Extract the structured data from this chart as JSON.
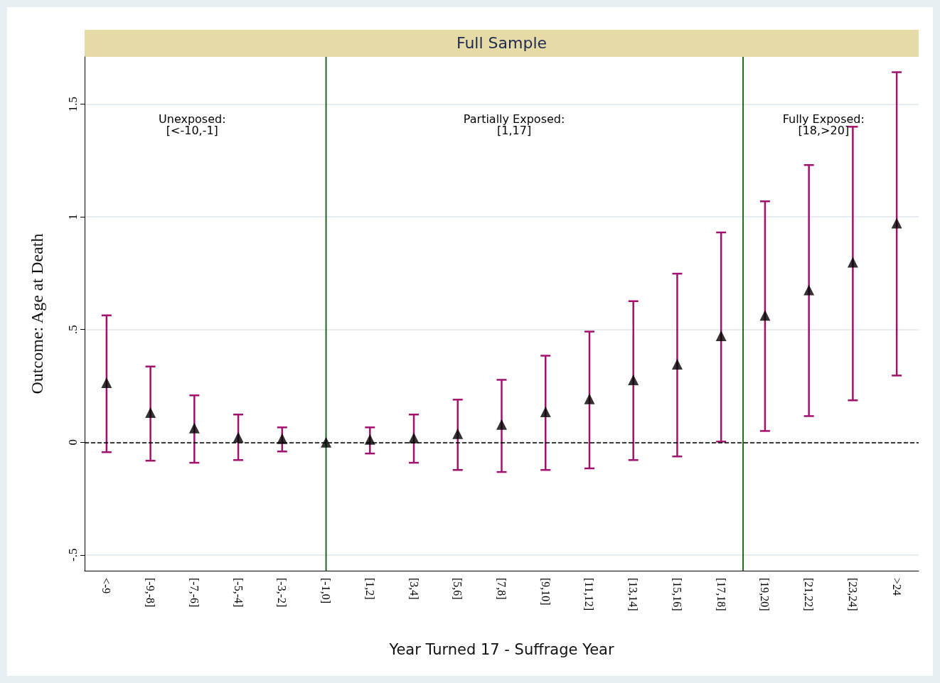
{
  "chart_data": {
    "type": "scatter",
    "title": "Full Sample",
    "xlabel": "Year Turned 17 - Suffrage Year",
    "ylabel": "Outcome: Age at Death",
    "categories": [
      "<-9",
      "[-9,-8]",
      "[-7,-6]",
      "[-5,-4]",
      "[-3,-2]",
      "[-1,0]",
      "[1,2]",
      "[3,4]",
      "[5,6]",
      "[7,8]",
      "[9,10]",
      "[11,12]",
      "[13,14]",
      "[15,16]",
      "[17,18]",
      "[19,20]",
      "[21,22]",
      "[23,24]",
      ">24"
    ],
    "series": [
      {
        "color": "#000000",
        "values": [
          0.264,
          0.132,
          0.063,
          0.022,
          0.016,
          0,
          0.013,
          0.019,
          0.038,
          0.079,
          0.135,
          0.192,
          0.277,
          0.346,
          0.472,
          0.563,
          0.676,
          0.799,
          0.972
        ],
        "errors": [
          [
            -0.044,
            0.563
          ],
          [
            -0.082,
            0.336
          ],
          [
            -0.091,
            0.208
          ],
          [
            -0.079,
            0.123
          ],
          [
            -0.041,
            0.066
          ],
          null,
          [
            -0.05,
            0.066
          ],
          [
            -0.091,
            0.123
          ],
          [
            -0.123,
            0.189
          ],
          [
            -0.132,
            0.277
          ],
          [
            -0.123,
            0.384
          ],
          [
            -0.116,
            0.491
          ],
          [
            -0.079,
            0.626
          ],
          [
            -0.063,
            0.748
          ],
          [
            0.003,
            0.931
          ],
          [
            0.05,
            1.069
          ],
          [
            0.116,
            1.23
          ],
          [
            0.186,
            1.4
          ],
          [
            0.296,
            1.642
          ]
        ]
      }
    ],
    "ylim": [
      -0.57,
      1.71
    ],
    "yticks": [
      {
        "value": -0.5,
        "label": "-.5"
      },
      0,
      {
        "value": 0.5,
        "label": ".5"
      },
      1,
      1.5
    ],
    "grid": "y",
    "marker": "triangle",
    "ref_lines": [
      {
        "axis": "y",
        "value": 0,
        "color": "#000000",
        "line_style": "dashed"
      },
      {
        "axis": "x",
        "value": "[-1,0]",
        "color": "#1a6b1a"
      }
    ],
    "annotations": [
      "Unexposed:\n[<-10,-1]",
      "Partially Exposed:\n[1,17]",
      "Fully Exposed:\n[18,>20]"
    ]
  }
}
